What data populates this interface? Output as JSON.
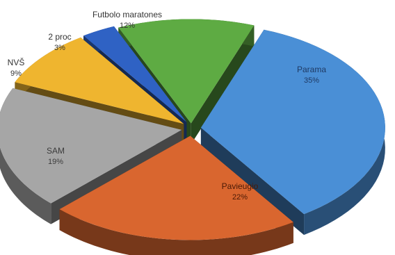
{
  "chart_data": {
    "type": "pie",
    "title": "",
    "slices": [
      {
        "name": "Parama",
        "value": 35,
        "label": "35%",
        "color": "#4a8fd6",
        "label_color": "#1f3a64",
        "in_slice": true
      },
      {
        "name": "Pavieugio",
        "value": 22,
        "label": "22%",
        "color": "#d9662f",
        "label_color": "#4a1a06",
        "in_slice": true
      },
      {
        "name": "SAM",
        "value": 19,
        "label": "19%",
        "color": "#a6a6a6",
        "label_color": "#3c3c3c",
        "in_slice": true
      },
      {
        "name": "NVŠ",
        "value": 9,
        "label": "9%",
        "color": "#efb52f",
        "label_color": "#333333",
        "in_slice": false
      },
      {
        "name": "2 proc",
        "value": 3,
        "label": "3%",
        "color": "#2f62c4",
        "label_color": "#333333",
        "in_slice": false
      },
      {
        "name": "Futbolo maratones",
        "value": 12,
        "label": "12%",
        "color": "#5eab43",
        "label_color": "#333333",
        "in_slice": false
      }
    ]
  }
}
